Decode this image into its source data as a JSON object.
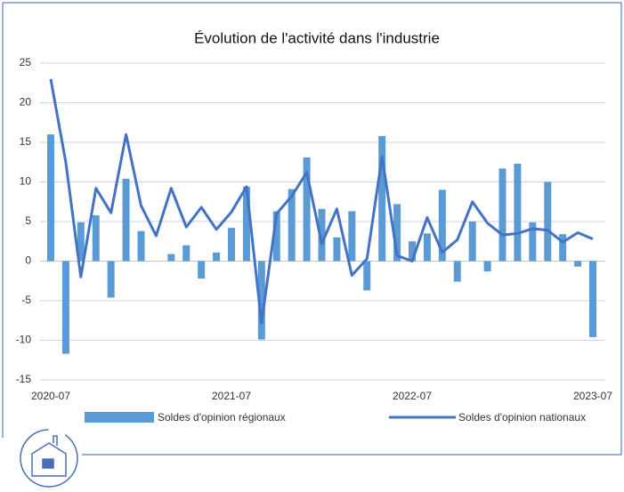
{
  "chart_data": {
    "type": "bar-line",
    "title": "Évolution de l'activité dans l'industrie",
    "categories": [
      "2020-07",
      null,
      null,
      null,
      null,
      null,
      null,
      null,
      null,
      null,
      null,
      null,
      "2021-07",
      null,
      null,
      null,
      null,
      null,
      null,
      null,
      null,
      null,
      null,
      null,
      "2022-07",
      null,
      null,
      null,
      null,
      null,
      null,
      null,
      null,
      null,
      null,
      null,
      "2023-07"
    ],
    "series": [
      {
        "name": "Soldes d'opinion régionaux",
        "type": "bar",
        "color": "#5b9bd5",
        "values": [
          16,
          -11.7,
          4.9,
          5.8,
          -4.6,
          10.4,
          3.8,
          0,
          0.9,
          2.0,
          -2.2,
          1.1,
          4.2,
          9.4,
          -9.9,
          6.3,
          9.1,
          13.1,
          6.6,
          3.0,
          6.3,
          -3.7,
          15.8,
          7.2,
          2.5,
          3.5,
          9.0,
          -2.6,
          5.0,
          -1.3,
          11.7,
          12.3,
          4.9,
          10.0,
          3.4,
          -0.7,
          -9.6
        ]
      },
      {
        "name": "Soldes d'opinion nationaux",
        "type": "line",
        "color": "#4472c4",
        "values": [
          23,
          12.5,
          -2,
          9.2,
          6.1,
          16,
          7,
          3.2,
          9.2,
          4.3,
          6.8,
          4,
          6.2,
          9.4,
          -7.8,
          6,
          8.2,
          11.2,
          2.2,
          6.6,
          -1.8,
          0.3,
          13.2,
          0.7,
          0,
          5.5,
          1.1,
          2.7,
          7.5,
          4.8,
          3.3,
          3.5,
          4.1,
          3.9,
          2.4,
          3.6,
          2.8
        ]
      }
    ],
    "ylim": [
      -15,
      25
    ],
    "yticks": [
      -15,
      -10,
      -5,
      0,
      5,
      10,
      15,
      20,
      25
    ],
    "grid": true
  }
}
